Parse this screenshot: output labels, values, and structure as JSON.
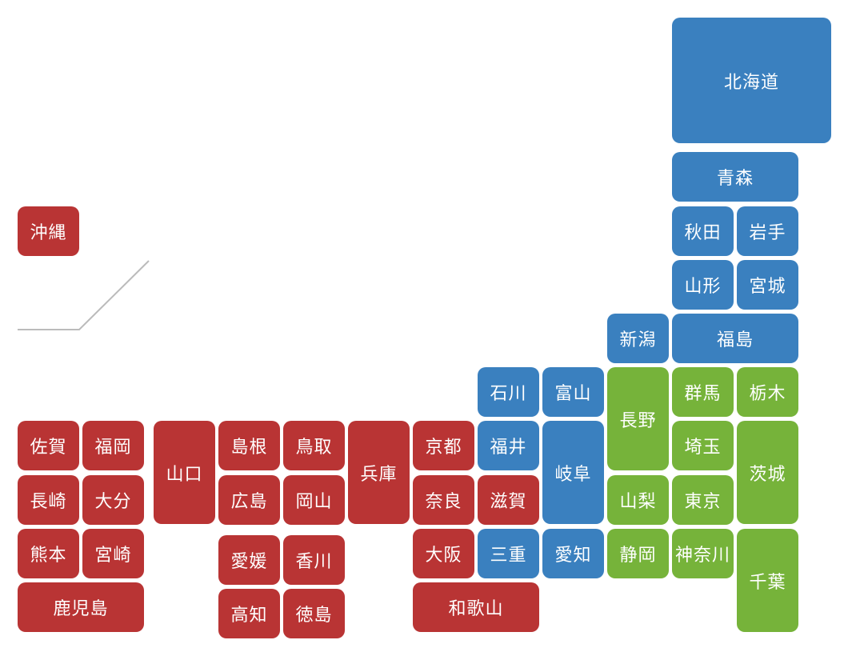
{
  "colors": {
    "west": "#b93434",
    "central": "#3a80bf",
    "east": "#76b33a",
    "divider": "#bbbbbb"
  },
  "prefectures": {
    "hokkaido": "北海道",
    "aomori": "青森",
    "akita": "秋田",
    "iwate": "岩手",
    "yamagata": "山形",
    "miyagi": "宮城",
    "niigata": "新潟",
    "fukushima": "福島",
    "ishikawa": "石川",
    "toyama": "富山",
    "nagano": "長野",
    "gunma": "群馬",
    "tochigi": "栃木",
    "fukui": "福井",
    "gifu": "岐阜",
    "saitama": "埼玉",
    "ibaraki": "茨城",
    "yamanashi": "山梨",
    "tokyo": "東京",
    "shizuoka": "静岡",
    "kanagawa": "神奈川",
    "chiba": "千葉",
    "aichi": "愛知",
    "mie": "三重",
    "shiga": "滋賀",
    "kyoto": "京都",
    "nara": "奈良",
    "osaka": "大阪",
    "wakayama": "和歌山",
    "hyogo": "兵庫",
    "shimane": "島根",
    "tottori": "鳥取",
    "hiroshima": "広島",
    "okayama": "岡山",
    "yamaguchi": "山口",
    "ehime": "愛媛",
    "kagawa": "香川",
    "kochi": "高知",
    "tokushima": "徳島",
    "saga": "佐賀",
    "fukuoka": "福岡",
    "nagasaki": "長崎",
    "oita": "大分",
    "kumamoto": "熊本",
    "miyazaki": "宮崎",
    "kagoshima": "鹿児島",
    "okinawa": "沖縄"
  }
}
